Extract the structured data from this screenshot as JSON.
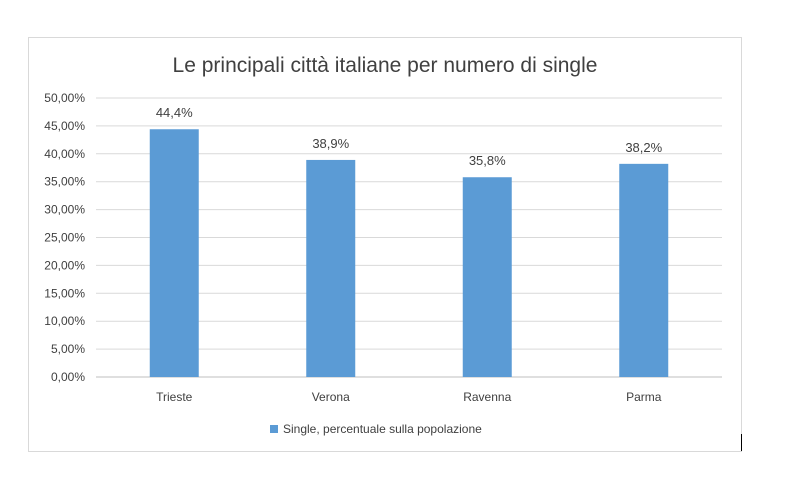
{
  "chart_data": {
    "type": "bar",
    "title": "Le principali città italiane per numero di single",
    "categories": [
      "Trieste",
      "Verona",
      "Ravenna",
      "Parma"
    ],
    "series": [
      {
        "name": "Single, percentuale sulla popolazione",
        "values": [
          44.4,
          38.9,
          35.8,
          38.2
        ],
        "data_labels": [
          "44,4%",
          "38,9%",
          "35,8%",
          "38,2%"
        ],
        "color": "#5b9bd5"
      }
    ],
    "ylim": [
      0,
      50
    ],
    "yticks": [
      0,
      5,
      10,
      15,
      20,
      25,
      30,
      35,
      40,
      45,
      50
    ],
    "ytick_labels": [
      "0,00%",
      "5,00%",
      "10,00%",
      "15,00%",
      "20,00%",
      "25,00%",
      "30,00%",
      "35,00%",
      "40,00%",
      "45,00%",
      "50,00%"
    ],
    "grid": true,
    "legend_position": "bottom"
  }
}
